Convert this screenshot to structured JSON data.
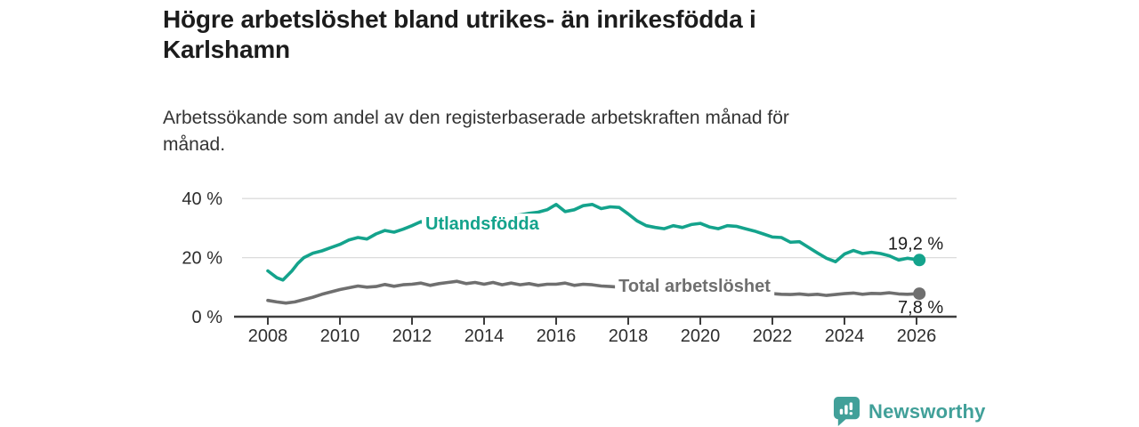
{
  "header": {
    "title_lines": [
      "Högre arbetslöshet bland utrikes- än inrikesfödda i",
      "Karlshamn"
    ],
    "subtitle_lines": [
      "Arbetssökande som andel av den registerbaserade arbetskraften månad för",
      "månad."
    ]
  },
  "chart_data": {
    "type": "line",
    "title": "Högre arbetslöshet bland utrikes- än inrikesfödda i Karlshamn",
    "subtitle": "Arbetssökande som andel av den registerbaserade arbetskraften månad för månad.",
    "unit": "%",
    "grid": true,
    "legend_position": "inline-labels",
    "x_axis": {
      "ticks": [
        2008,
        2010,
        2012,
        2014,
        2016,
        2018,
        2020,
        2022,
        2024,
        2026
      ],
      "tick_labels": [
        "2008",
        "2010",
        "2012",
        "2014",
        "2016",
        "2018",
        "2020",
        "2022",
        "2024",
        "2026"
      ],
      "range": [
        2007.1,
        2027.1
      ]
    },
    "y_axis": {
      "ticks": [
        0,
        20,
        40
      ],
      "tick_labels": [
        "0 %",
        "20 %",
        "40 %"
      ],
      "gridlines": [
        20,
        40
      ],
      "range": [
        0,
        42
      ]
    },
    "series": [
      {
        "id": "utlandsfodda",
        "name": "Utlandsfödda",
        "color": "#14a38c",
        "label_anchor": {
          "year": 2012.37,
          "pct": 29.5
        },
        "end_label": {
          "text": "19,2 %",
          "value": 19.2,
          "position": "above"
        },
        "points": [
          [
            2008.0,
            15.5
          ],
          [
            2008.25,
            13.2
          ],
          [
            2008.42,
            12.4
          ],
          [
            2008.67,
            15.5
          ],
          [
            2008.83,
            18.0
          ],
          [
            2009.0,
            20.0
          ],
          [
            2009.25,
            21.5
          ],
          [
            2009.5,
            22.3
          ],
          [
            2009.75,
            23.4
          ],
          [
            2010.0,
            24.5
          ],
          [
            2010.25,
            26.0
          ],
          [
            2010.5,
            26.8
          ],
          [
            2010.75,
            26.3
          ],
          [
            2011.0,
            28.0
          ],
          [
            2011.25,
            29.2
          ],
          [
            2011.5,
            28.6
          ],
          [
            2011.75,
            29.6
          ],
          [
            2012.0,
            30.8
          ],
          [
            2012.25,
            32.2
          ],
          [
            2012.5,
            31.4
          ],
          [
            2012.75,
            31.8
          ],
          [
            2013.0,
            32.0
          ],
          [
            2013.25,
            32.4
          ],
          [
            2013.5,
            32.2
          ],
          [
            2013.75,
            32.8
          ],
          [
            2014.0,
            33.0
          ],
          [
            2014.25,
            33.5
          ],
          [
            2014.5,
            33.8
          ],
          [
            2014.75,
            34.2
          ],
          [
            2015.0,
            34.5
          ],
          [
            2015.25,
            35.0
          ],
          [
            2015.5,
            35.4
          ],
          [
            2015.75,
            36.2
          ],
          [
            2016.0,
            38.0
          ],
          [
            2016.25,
            35.6
          ],
          [
            2016.5,
            36.2
          ],
          [
            2016.75,
            37.6
          ],
          [
            2017.0,
            38.0
          ],
          [
            2017.25,
            36.6
          ],
          [
            2017.5,
            37.2
          ],
          [
            2017.75,
            37.0
          ],
          [
            2018.0,
            34.8
          ],
          [
            2018.25,
            32.4
          ],
          [
            2018.5,
            30.8
          ],
          [
            2018.75,
            30.2
          ],
          [
            2019.0,
            29.8
          ],
          [
            2019.25,
            30.8
          ],
          [
            2019.5,
            30.2
          ],
          [
            2019.75,
            31.2
          ],
          [
            2020.0,
            31.6
          ],
          [
            2020.25,
            30.4
          ],
          [
            2020.5,
            29.8
          ],
          [
            2020.75,
            30.8
          ],
          [
            2021.0,
            30.6
          ],
          [
            2021.25,
            29.8
          ],
          [
            2021.5,
            29.0
          ],
          [
            2021.75,
            28.0
          ],
          [
            2022.0,
            27.0
          ],
          [
            2022.25,
            26.8
          ],
          [
            2022.5,
            25.2
          ],
          [
            2022.75,
            25.4
          ],
          [
            2023.0,
            23.5
          ],
          [
            2023.25,
            21.6
          ],
          [
            2023.5,
            19.8
          ],
          [
            2023.75,
            18.6
          ],
          [
            2024.0,
            21.2
          ],
          [
            2024.25,
            22.4
          ],
          [
            2024.5,
            21.4
          ],
          [
            2024.75,
            21.8
          ],
          [
            2025.0,
            21.4
          ],
          [
            2025.25,
            20.6
          ],
          [
            2025.5,
            19.2
          ],
          [
            2025.75,
            19.8
          ],
          [
            2026.08,
            19.2
          ]
        ]
      },
      {
        "id": "total-arbetsloshet",
        "name": "Total arbetslöshet",
        "color": "#6f6f6f",
        "label_anchor": {
          "year": 2017.73,
          "pct": 8.4
        },
        "end_label": {
          "text": "7,8 %",
          "value": 7.8,
          "position": "below"
        },
        "points": [
          [
            2008.0,
            5.5
          ],
          [
            2008.25,
            5.0
          ],
          [
            2008.5,
            4.6
          ],
          [
            2008.75,
            5.0
          ],
          [
            2009.0,
            5.8
          ],
          [
            2009.25,
            6.6
          ],
          [
            2009.5,
            7.6
          ],
          [
            2009.75,
            8.4
          ],
          [
            2010.0,
            9.2
          ],
          [
            2010.25,
            9.8
          ],
          [
            2010.5,
            10.4
          ],
          [
            2010.75,
            10.0
          ],
          [
            2011.0,
            10.2
          ],
          [
            2011.25,
            10.9
          ],
          [
            2011.5,
            10.3
          ],
          [
            2011.75,
            10.8
          ],
          [
            2012.0,
            11.0
          ],
          [
            2012.25,
            11.4
          ],
          [
            2012.5,
            10.6
          ],
          [
            2012.75,
            11.2
          ],
          [
            2013.0,
            11.6
          ],
          [
            2013.25,
            12.0
          ],
          [
            2013.5,
            11.2
          ],
          [
            2013.75,
            11.6
          ],
          [
            2014.0,
            11.0
          ],
          [
            2014.25,
            11.6
          ],
          [
            2014.5,
            10.8
          ],
          [
            2014.75,
            11.4
          ],
          [
            2015.0,
            10.8
          ],
          [
            2015.25,
            11.2
          ],
          [
            2015.5,
            10.6
          ],
          [
            2015.75,
            11.0
          ],
          [
            2016.0,
            11.0
          ],
          [
            2016.25,
            11.4
          ],
          [
            2016.5,
            10.6
          ],
          [
            2016.75,
            11.0
          ],
          [
            2017.0,
            10.8
          ],
          [
            2017.25,
            10.4
          ],
          [
            2017.5,
            10.2
          ],
          [
            2017.75,
            10.0
          ],
          [
            2018.0,
            9.7
          ],
          [
            2018.5,
            9.4
          ],
          [
            2019.0,
            9.0
          ],
          [
            2019.5,
            8.8
          ],
          [
            2020.0,
            9.2
          ],
          [
            2020.5,
            9.5
          ],
          [
            2021.0,
            8.9
          ],
          [
            2021.5,
            8.3
          ],
          [
            2022.0,
            7.8
          ],
          [
            2022.25,
            7.6
          ],
          [
            2022.5,
            7.5
          ],
          [
            2022.75,
            7.7
          ],
          [
            2023.0,
            7.4
          ],
          [
            2023.25,
            7.6
          ],
          [
            2023.5,
            7.2
          ],
          [
            2023.75,
            7.5
          ],
          [
            2024.0,
            7.8
          ],
          [
            2024.25,
            8.0
          ],
          [
            2024.5,
            7.6
          ],
          [
            2024.75,
            7.9
          ],
          [
            2025.0,
            7.8
          ],
          [
            2025.25,
            8.1
          ],
          [
            2025.5,
            7.7
          ],
          [
            2025.75,
            7.6
          ],
          [
            2026.08,
            7.8
          ]
        ]
      }
    ]
  },
  "footer": {
    "brand": "Newsworthy",
    "brand_color": "#41a099",
    "logo_icon": "newsworthy-speech-bubble-bar-chart-icon"
  }
}
